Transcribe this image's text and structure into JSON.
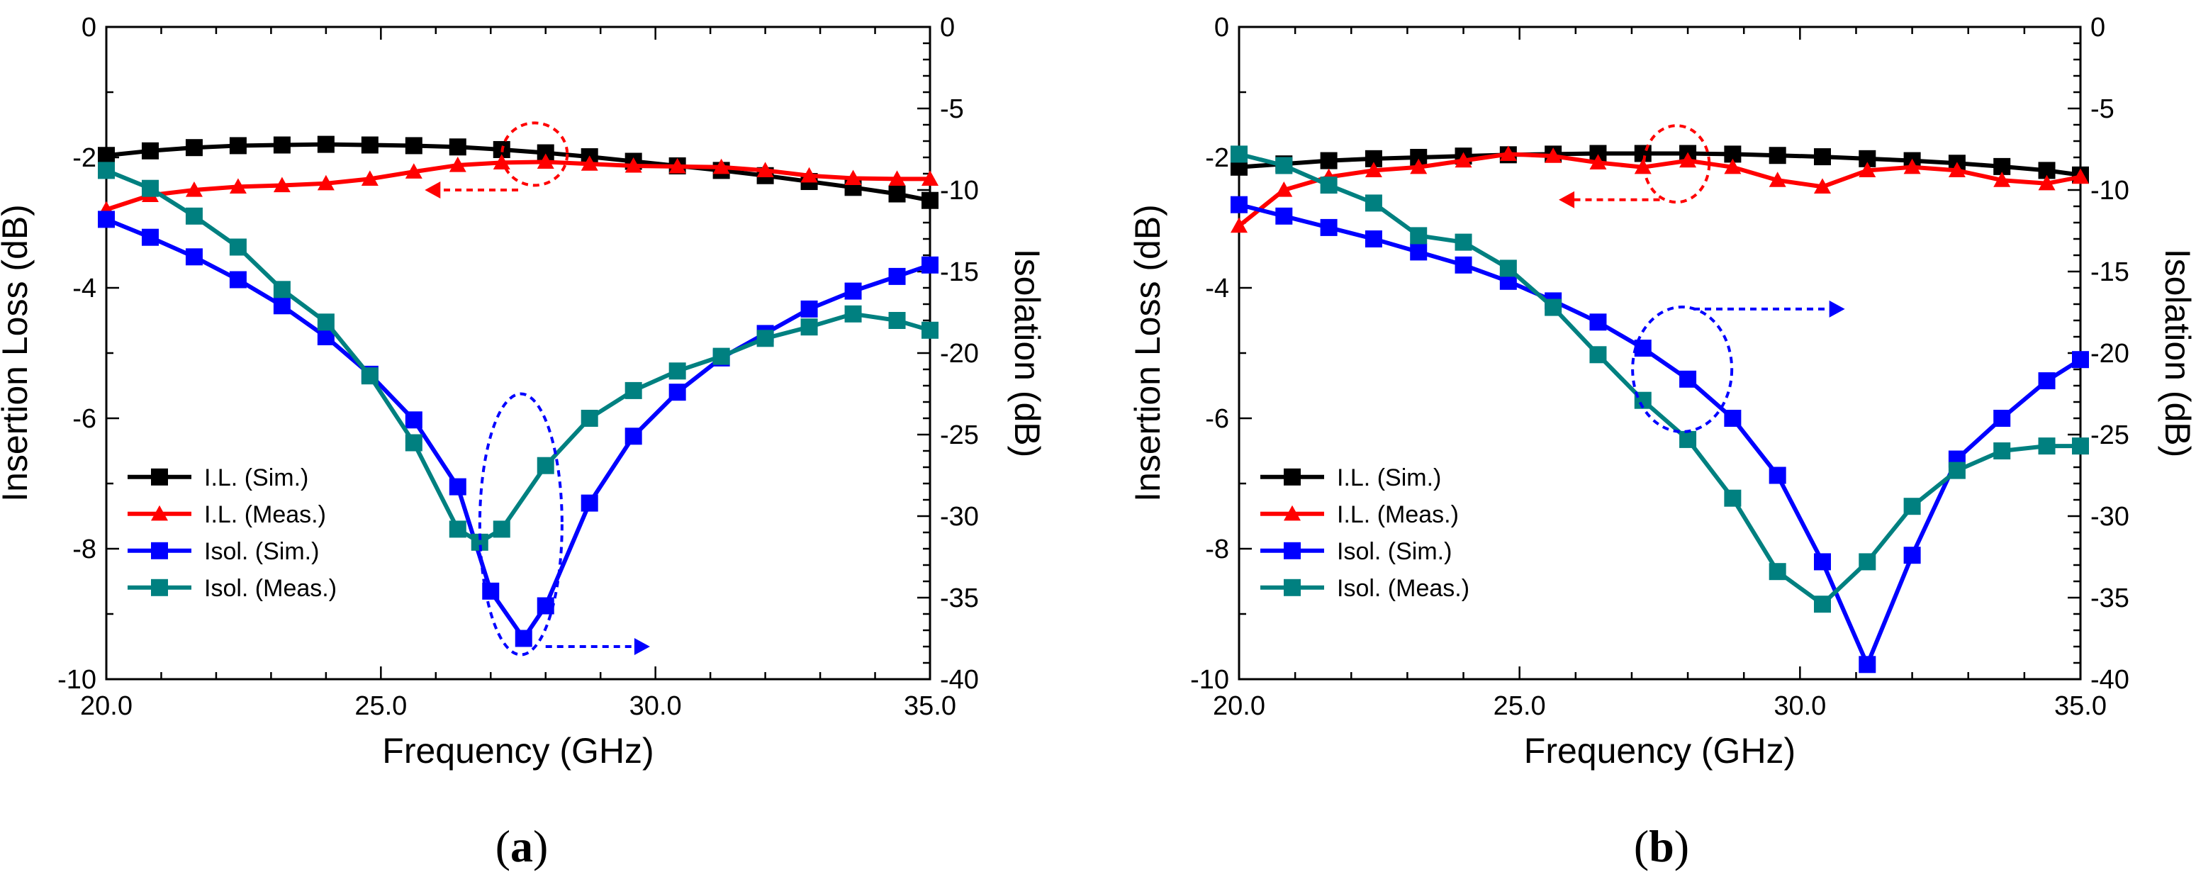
{
  "chart_data": [
    {
      "type": "line",
      "panel_label": "a",
      "xlabel": "Frequency (GHz)",
      "ylabel": "Insertion Loss (dB)",
      "y2label": "Isolation (dB)",
      "xlim": [
        20,
        35
      ],
      "ylim": [
        -10,
        0
      ],
      "y2lim": [
        -40,
        0
      ],
      "x_ticks": [
        "20.0",
        "25.0",
        "30.0",
        "35.0"
      ],
      "y_ticks": [
        "0",
        "-2",
        "-4",
        "-6",
        "-8",
        "-10"
      ],
      "y2_ticks": [
        "0",
        "-5",
        "-10",
        "-15",
        "-20",
        "-25",
        "-30",
        "-35",
        "-40"
      ],
      "legend": [
        "I.L. (Sim.)",
        "I.L. (Meas.)",
        "Isol. (Sim.)",
        "Isol. (Meas.)"
      ],
      "legend_position": "bottom-left",
      "series": [
        {
          "name": "I.L. (Sim.)",
          "axis": "left",
          "color": "#000000",
          "marker": "square",
          "x": [
            20,
            20.8,
            21.6,
            22.4,
            23.2,
            24,
            24.8,
            25.6,
            26.4,
            27.2,
            28,
            28.8,
            29.6,
            30.4,
            31.2,
            32,
            32.8,
            33.6,
            34.4,
            35
          ],
          "y": [
            -1.97,
            -1.9,
            -1.85,
            -1.82,
            -1.81,
            -1.8,
            -1.81,
            -1.82,
            -1.84,
            -1.88,
            -1.93,
            -1.99,
            -2.06,
            -2.13,
            -2.2,
            -2.28,
            -2.37,
            -2.46,
            -2.56,
            -2.66
          ]
        },
        {
          "name": "I.L. (Meas.)",
          "axis": "left",
          "color": "#ff0000",
          "marker": "triangle",
          "x": [
            20,
            20.8,
            21.6,
            22.4,
            23.2,
            24,
            24.8,
            25.6,
            26.4,
            27.2,
            28,
            28.8,
            29.6,
            30.4,
            31.2,
            32,
            32.8,
            33.6,
            34.4,
            35
          ],
          "y": [
            -2.8,
            -2.58,
            -2.5,
            -2.45,
            -2.43,
            -2.4,
            -2.33,
            -2.22,
            -2.12,
            -2.08,
            -2.07,
            -2.1,
            -2.13,
            -2.14,
            -2.15,
            -2.2,
            -2.28,
            -2.32,
            -2.33,
            -2.33
          ]
        },
        {
          "name": "Isol. (Sim.)",
          "axis": "right",
          "color": "#0000ff",
          "marker": "square",
          "x": [
            20,
            20.8,
            21.6,
            22.4,
            23.2,
            24,
            24.8,
            25.6,
            26.4,
            27,
            27.6,
            28,
            28.8,
            29.6,
            30.4,
            31.2,
            32,
            32.8,
            33.6,
            34.4,
            35
          ],
          "y": [
            -11.8,
            -12.9,
            -14.1,
            -15.5,
            -17.1,
            -19,
            -21.3,
            -24.1,
            -28.2,
            -34.6,
            -37.5,
            -35.5,
            -29.2,
            -25.1,
            -22.4,
            -20.3,
            -18.8,
            -17.3,
            -16.2,
            -15.3,
            -14.6
          ]
        },
        {
          "name": "Isol. (Meas.)",
          "axis": "right",
          "color": "#008080",
          "marker": "square",
          "x": [
            20,
            20.8,
            21.6,
            22.4,
            23.2,
            24,
            24.8,
            25.6,
            26.4,
            26.8,
            27.2,
            28,
            28.8,
            29.6,
            30.4,
            31.2,
            32,
            32.8,
            33.6,
            34.4,
            35
          ],
          "y": [
            -8.8,
            -9.9,
            -11.6,
            -13.5,
            -16.1,
            -18.1,
            -21.4,
            -25.5,
            -30.8,
            -31.6,
            -30.8,
            -26.9,
            -24,
            -22.3,
            -21.1,
            -20.2,
            -19.1,
            -18.4,
            -17.6,
            -18,
            -18.6
          ]
        }
      ]
    },
    {
      "type": "line",
      "panel_label": "b",
      "xlabel": "Frequency (GHz)",
      "ylabel": "Insertion Loss (dB)",
      "y2label": "Isolation (dB)",
      "xlim": [
        20,
        35
      ],
      "ylim": [
        -10,
        0
      ],
      "y2lim": [
        -40,
        0
      ],
      "x_ticks": [
        "20.0",
        "25.0",
        "30.0",
        "35.0"
      ],
      "y_ticks": [
        "0",
        "-2",
        "-4",
        "-6",
        "-8",
        "-10"
      ],
      "y2_ticks": [
        "0",
        "-5",
        "-10",
        "-15",
        "-20",
        "-25",
        "-30",
        "-35",
        "-40"
      ],
      "legend": [
        "I.L. (Sim.)",
        "I.L. (Meas.)",
        "Isol. (Sim.)",
        "Isol. (Meas.)"
      ],
      "legend_position": "bottom-left",
      "series": [
        {
          "name": "I.L. (Sim.)",
          "axis": "left",
          "color": "#000000",
          "marker": "square",
          "x": [
            20,
            20.8,
            21.6,
            22.4,
            23.2,
            24,
            24.8,
            25.6,
            26.4,
            27.2,
            28,
            28.8,
            29.6,
            30.4,
            31.2,
            32,
            32.8,
            33.6,
            34.4,
            35
          ],
          "y": [
            -2.15,
            -2.1,
            -2.05,
            -2.02,
            -2,
            -1.98,
            -1.96,
            -1.95,
            -1.94,
            -1.94,
            -1.94,
            -1.95,
            -1.97,
            -1.99,
            -2.02,
            -2.05,
            -2.09,
            -2.14,
            -2.2,
            -2.27
          ]
        },
        {
          "name": "I.L. (Meas.)",
          "axis": "left",
          "color": "#ff0000",
          "marker": "triangle",
          "x": [
            20,
            20.8,
            21.6,
            22.4,
            23.2,
            24,
            24.8,
            25.6,
            26.4,
            27.2,
            28,
            28.8,
            29.6,
            30.4,
            31.2,
            32,
            32.8,
            33.6,
            34.4,
            35
          ],
          "y": [
            -3.05,
            -2.5,
            -2.3,
            -2.2,
            -2.15,
            -2.05,
            -1.95,
            -1.98,
            -2.08,
            -2.15,
            -2.05,
            -2.15,
            -2.35,
            -2.45,
            -2.2,
            -2.15,
            -2.2,
            -2.35,
            -2.4,
            -2.3
          ]
        },
        {
          "name": "Isol. (Sim.)",
          "axis": "right",
          "color": "#0000ff",
          "marker": "square",
          "x": [
            20,
            20.8,
            21.6,
            22.4,
            23.2,
            24,
            24.8,
            25.6,
            26.4,
            27.2,
            28,
            28.8,
            29.6,
            30.4,
            31.2,
            32,
            32.8,
            33.6,
            34.4,
            35
          ],
          "y": [
            -10.9,
            -11.6,
            -12.3,
            -13,
            -13.8,
            -14.6,
            -15.6,
            -16.8,
            -18.1,
            -19.7,
            -21.6,
            -24,
            -27.5,
            -32.8,
            -39.1,
            -32.4,
            -26.5,
            -24,
            -21.7,
            -20.4
          ]
        },
        {
          "name": "Isol. (Meas.)",
          "axis": "right",
          "color": "#008080",
          "marker": "square",
          "x": [
            20,
            20.8,
            21.6,
            22.4,
            23.2,
            24,
            24.8,
            25.6,
            26.4,
            27.2,
            28,
            28.8,
            29.6,
            30.4,
            31.2,
            32,
            32.8,
            33.6,
            34.4,
            35
          ],
          "y": [
            -7.8,
            -8.5,
            -9.7,
            -10.8,
            -12.8,
            -13.2,
            -14.8,
            -17.2,
            -20.1,
            -22.9,
            -25.3,
            -28.9,
            -33.4,
            -35.4,
            -32.8,
            -29.4,
            -27.2,
            -26,
            -25.7,
            -25.7
          ]
        }
      ]
    }
  ]
}
